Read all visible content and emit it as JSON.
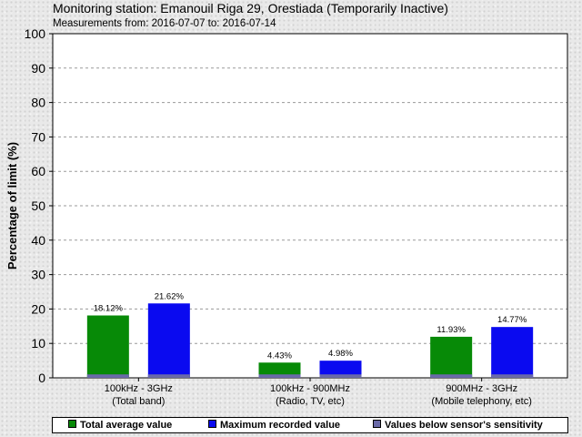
{
  "header": {
    "title": "Monitoring station: Emanouil Riga 29, Orestiada (Temporarily Inactive)",
    "subtitle": "Measurements from: 2016-07-07 to: 2016-07-14"
  },
  "chart_data": {
    "type": "bar",
    "title": "Monitoring station: Emanouil Riga 29, Orestiada (Temporarily Inactive)",
    "subtitle": "Measurements from: 2016-07-07 to: 2016-07-14",
    "ylabel": "Percentage of limit (%)",
    "xlabel": "",
    "ylim": [
      0,
      100
    ],
    "yticks": [
      0,
      10,
      20,
      30,
      40,
      50,
      60,
      70,
      80,
      90,
      100
    ],
    "grid": true,
    "legend_position": "bottom",
    "categories": [
      [
        "100kHz - 3GHz",
        "(Total band)"
      ],
      [
        "100kHz - 900MHz",
        "(Radio, TV, etc)"
      ],
      [
        "900MHz - 3GHz",
        "(Mobile telephony, etc)"
      ]
    ],
    "series": [
      {
        "name": "Total average value",
        "color": "#078a07",
        "values": [
          18.12,
          4.43,
          11.93
        ],
        "labels": [
          "18.12%",
          "4.43%",
          "11.93%"
        ]
      },
      {
        "name": "Maximum recorded value",
        "color": "#0a0af0",
        "values": [
          21.62,
          4.98,
          14.77
        ],
        "labels": [
          "21.62%",
          "4.98%",
          "14.77%"
        ]
      }
    ],
    "sensitivity": {
      "name": "Values below sensor's sensitivity",
      "color": "#6a6aa8",
      "value": 1
    }
  }
}
